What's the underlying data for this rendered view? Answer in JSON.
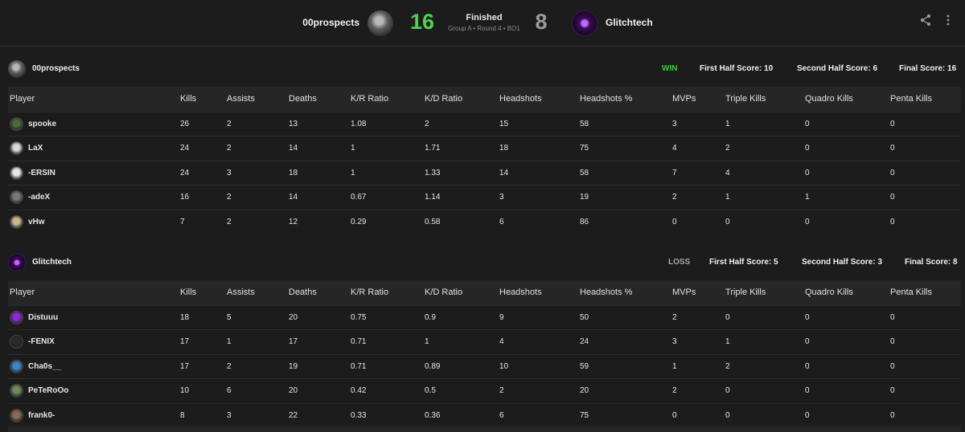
{
  "match": {
    "team_left": "00prospects",
    "team_right": "Glitchtech",
    "score_left": "16",
    "score_right": "8",
    "status": "Finished",
    "status_detail": "Group A • Round 4 • BO1"
  },
  "columns": [
    "Player",
    "Kills",
    "Assists",
    "Deaths",
    "K/R Ratio",
    "K/D Ratio",
    "Headshots",
    "Headshots %",
    "MVPs",
    "Triple Kills",
    "Quadro Kills",
    "Penta Kills"
  ],
  "teams": [
    {
      "name": "00prospects",
      "result": "WIN",
      "first_half": "First Half Score: 10",
      "second_half": "Second Half Score: 6",
      "final": "Final Score: 16",
      "players": [
        {
          "name": "spooke",
          "kills": "26",
          "assists": "2",
          "deaths": "13",
          "kr": "1.08",
          "kd": "2",
          "hs": "15",
          "hsp": "58",
          "mvps": "3",
          "triple": "1",
          "quadro": "0",
          "penta": "0",
          "avatar_color": "#4a6b3a"
        },
        {
          "name": "LaX",
          "kills": "24",
          "assists": "2",
          "deaths": "14",
          "kr": "1",
          "kd": "1.71",
          "hs": "18",
          "hsp": "75",
          "mvps": "4",
          "triple": "2",
          "quadro": "0",
          "penta": "0",
          "avatar_color": "#d9d9d9"
        },
        {
          "name": "-ERSIN",
          "kills": "24",
          "assists": "3",
          "deaths": "18",
          "kr": "1",
          "kd": "1.33",
          "hs": "14",
          "hsp": "58",
          "mvps": "7",
          "triple": "4",
          "quadro": "0",
          "penta": "0",
          "avatar_color": "#e8e8e8"
        },
        {
          "name": "-adeX",
          "kills": "16",
          "assists": "2",
          "deaths": "14",
          "kr": "0.67",
          "kd": "1.14",
          "hs": "3",
          "hsp": "19",
          "mvps": "2",
          "triple": "1",
          "quadro": "1",
          "penta": "0",
          "avatar_color": "#7a7a7a"
        },
        {
          "name": "vHw",
          "kills": "7",
          "assists": "2",
          "deaths": "12",
          "kr": "0.29",
          "kd": "0.58",
          "hs": "6",
          "hsp": "86",
          "mvps": "0",
          "triple": "0",
          "quadro": "0",
          "penta": "0",
          "avatar_color": "#cbb58a"
        }
      ]
    },
    {
      "name": "Glitchtech",
      "result": "LOSS",
      "first_half": "First Half Score: 5",
      "second_half": "Second Half Score: 3",
      "final": "Final Score: 8",
      "players": [
        {
          "name": "Distuuu",
          "kills": "18",
          "assists": "5",
          "deaths": "20",
          "kr": "0.75",
          "kd": "0.9",
          "hs": "9",
          "hsp": "50",
          "mvps": "2",
          "triple": "0",
          "quadro": "0",
          "penta": "0",
          "avatar_color": "#8a2bd6"
        },
        {
          "name": "-FENIX",
          "kills": "17",
          "assists": "1",
          "deaths": "17",
          "kr": "0.71",
          "kd": "1",
          "hs": "4",
          "hsp": "24",
          "mvps": "3",
          "triple": "1",
          "quadro": "0",
          "penta": "0",
          "avatar_color": "#2a2a2a"
        },
        {
          "name": "Cha0s__",
          "kills": "17",
          "assists": "2",
          "deaths": "19",
          "kr": "0.71",
          "kd": "0.89",
          "hs": "10",
          "hsp": "59",
          "mvps": "1",
          "triple": "2",
          "quadro": "0",
          "penta": "0",
          "avatar_color": "#3a88c8"
        },
        {
          "name": "PeTeRoOo",
          "kills": "10",
          "assists": "6",
          "deaths": "20",
          "kr": "0.42",
          "kd": "0.5",
          "hs": "2",
          "hsp": "20",
          "mvps": "2",
          "triple": "0",
          "quadro": "0",
          "penta": "0",
          "avatar_color": "#6e8a5a"
        },
        {
          "name": "frank0-",
          "kills": "8",
          "assists": "3",
          "deaths": "22",
          "kr": "0.33",
          "kd": "0.36",
          "hs": "6",
          "hsp": "75",
          "mvps": "0",
          "triple": "0",
          "quadro": "0",
          "penta": "0",
          "avatar_color": "#8a6a55"
        }
      ]
    }
  ]
}
